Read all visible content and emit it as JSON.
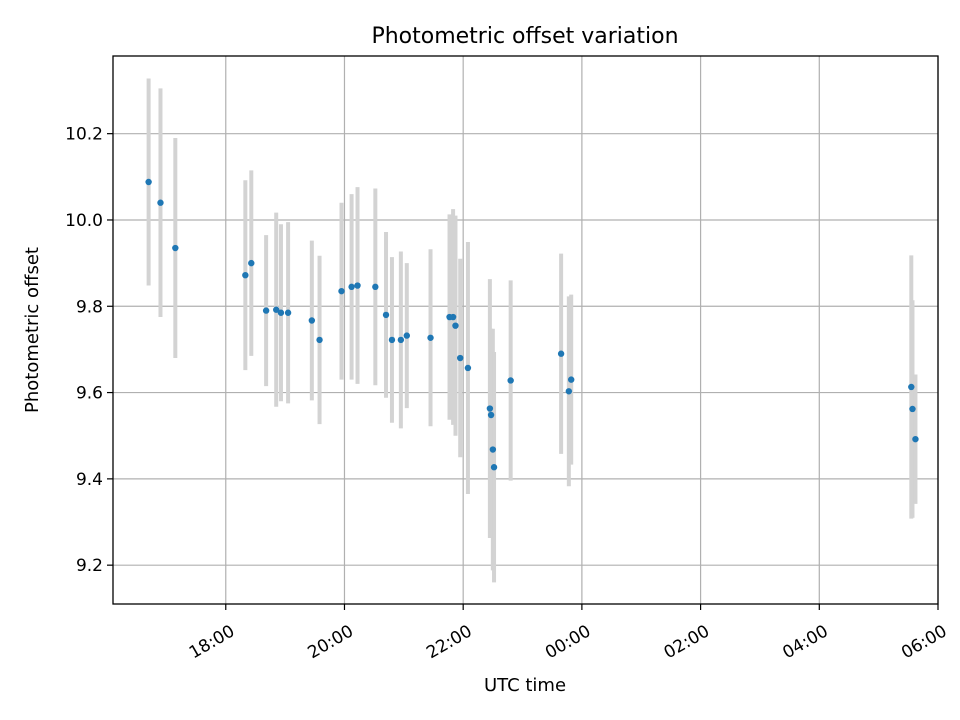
{
  "chart_data": {
    "type": "scatter",
    "title": "Photometric offset variation",
    "xlabel": "UTC time",
    "ylabel": "Photometric offset",
    "grid": true,
    "x_unit": "hours after 00:00 of first day",
    "xlim": [
      16.1,
      30.0
    ],
    "ylim": [
      9.11,
      10.38
    ],
    "xticks": [
      {
        "value": 18,
        "label": "18:00"
      },
      {
        "value": 20,
        "label": "20:00"
      },
      {
        "value": 22,
        "label": "22:00"
      },
      {
        "value": 24,
        "label": "00:00"
      },
      {
        "value": 26,
        "label": "02:00"
      },
      {
        "value": 28,
        "label": "04:00"
      },
      {
        "value": 30,
        "label": "06:00"
      }
    ],
    "yticks": [
      {
        "value": 9.2,
        "label": "9.2"
      },
      {
        "value": 9.4,
        "label": "9.4"
      },
      {
        "value": 9.6,
        "label": "9.6"
      },
      {
        "value": 9.8,
        "label": "9.8"
      },
      {
        "value": 10.0,
        "label": "10.0"
      },
      {
        "value": 10.2,
        "label": "10.2"
      }
    ],
    "marker_color": "#1f77b4",
    "errorbar_color": "#d3d3d3",
    "points": [
      {
        "x": 16.7,
        "y": 10.088,
        "err": 0.24
      },
      {
        "x": 16.9,
        "y": 10.04,
        "err": 0.265
      },
      {
        "x": 17.15,
        "y": 9.935,
        "err": 0.255
      },
      {
        "x": 18.33,
        "y": 9.872,
        "err": 0.22
      },
      {
        "x": 18.43,
        "y": 9.9,
        "err": 0.215
      },
      {
        "x": 18.68,
        "y": 9.79,
        "err": 0.175
      },
      {
        "x": 18.85,
        "y": 9.792,
        "err": 0.225
      },
      {
        "x": 18.93,
        "y": 9.785,
        "err": 0.205
      },
      {
        "x": 19.05,
        "y": 9.785,
        "err": 0.21
      },
      {
        "x": 19.45,
        "y": 9.767,
        "err": 0.185
      },
      {
        "x": 19.58,
        "y": 9.722,
        "err": 0.195
      },
      {
        "x": 19.95,
        "y": 9.835,
        "err": 0.205
      },
      {
        "x": 20.12,
        "y": 9.845,
        "err": 0.215
      },
      {
        "x": 20.22,
        "y": 9.848,
        "err": 0.228
      },
      {
        "x": 20.52,
        "y": 9.845,
        "err": 0.228
      },
      {
        "x": 20.7,
        "y": 9.78,
        "err": 0.192
      },
      {
        "x": 20.8,
        "y": 9.722,
        "err": 0.192
      },
      {
        "x": 20.95,
        "y": 9.722,
        "err": 0.205
      },
      {
        "x": 21.05,
        "y": 9.732,
        "err": 0.168
      },
      {
        "x": 21.45,
        "y": 9.727,
        "err": 0.205
      },
      {
        "x": 21.77,
        "y": 9.775,
        "err": 0.238
      },
      {
        "x": 21.83,
        "y": 9.775,
        "err": 0.25
      },
      {
        "x": 21.87,
        "y": 9.755,
        "err": 0.255
      },
      {
        "x": 21.95,
        "y": 9.68,
        "err": 0.23
      },
      {
        "x": 22.08,
        "y": 9.657,
        "err": 0.292
      },
      {
        "x": 22.45,
        "y": 9.563,
        "err": 0.3
      },
      {
        "x": 22.47,
        "y": 9.548,
        "err": 0.2
      },
      {
        "x": 22.5,
        "y": 9.468,
        "err": 0.28
      },
      {
        "x": 22.52,
        "y": 9.427,
        "err": 0.267
      },
      {
        "x": 22.8,
        "y": 9.628,
        "err": 0.232
      },
      {
        "x": 23.65,
        "y": 9.69,
        "err": 0.232
      },
      {
        "x": 23.78,
        "y": 9.603,
        "err": 0.22
      },
      {
        "x": 23.82,
        "y": 9.63,
        "err": 0.197
      },
      {
        "x": 29.55,
        "y": 9.613,
        "err": 0.305
      },
      {
        "x": 29.57,
        "y": 9.562,
        "err": 0.252
      },
      {
        "x": 29.62,
        "y": 9.492,
        "err": 0.15
      }
    ]
  }
}
